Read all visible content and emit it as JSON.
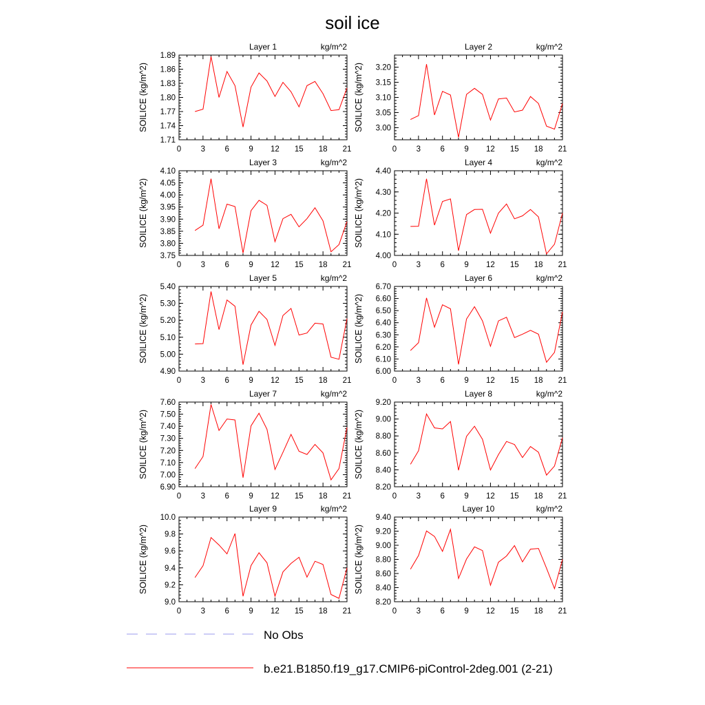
{
  "figure_title": "soil ice",
  "legend": [
    {
      "label": "No Obs",
      "color": "#9999ee",
      "dash": true
    },
    {
      "label": "b.e21.B1850.f19_g17.CMIP6-piControl-2deg.001 (2-21)",
      "color": "#ff0000",
      "dash": false
    }
  ],
  "chart_data": [
    {
      "type": "line",
      "title": "Layer 1",
      "units": "kg/m^2",
      "ylabel": "SOILICE  (kg/m^2)",
      "xlim": [
        0,
        21
      ],
      "ylim": [
        1.71,
        1.89
      ],
      "yticks": [
        "1.71",
        "1.74",
        "1.77",
        "1.80",
        "1.83",
        "1.86",
        "1.89"
      ],
      "x": [
        2,
        3,
        4,
        5,
        6,
        7,
        8,
        9,
        10,
        11,
        12,
        13,
        14,
        15,
        16,
        17,
        18,
        19,
        20,
        21
      ],
      "values": [
        1.77,
        1.775,
        1.887,
        1.8,
        1.855,
        1.825,
        1.737,
        1.822,
        1.852,
        1.835,
        1.802,
        1.832,
        1.812,
        1.78,
        1.825,
        1.834,
        1.808,
        1.772,
        1.774,
        1.82
      ]
    },
    {
      "type": "line",
      "title": "Layer 2",
      "units": "kg/m^2",
      "ylabel": "SOILICE  (kg/m^2)",
      "xlim": [
        0,
        21
      ],
      "ylim": [
        2.96,
        3.24
      ],
      "yticks": [
        "3.00",
        "3.05",
        "3.10",
        "3.15",
        "3.20"
      ],
      "x": [
        2,
        3,
        4,
        5,
        6,
        7,
        8,
        9,
        10,
        11,
        12,
        13,
        14,
        15,
        16,
        17,
        18,
        19,
        20,
        21
      ],
      "values": [
        3.027,
        3.04,
        3.21,
        3.042,
        3.12,
        3.108,
        2.968,
        3.11,
        3.13,
        3.11,
        3.025,
        3.095,
        3.098,
        3.052,
        3.058,
        3.103,
        3.08,
        3.005,
        2.995,
        3.08
      ]
    },
    {
      "type": "line",
      "title": "Layer 3",
      "units": "kg/m^2",
      "ylabel": "SOILICE  (kg/m^2)",
      "xlim": [
        0,
        21
      ],
      "ylim": [
        3.75,
        4.1
      ],
      "yticks": [
        "3.75",
        "3.80",
        "3.85",
        "3.90",
        "3.95",
        "4.00",
        "4.05",
        "4.10"
      ],
      "x": [
        2,
        3,
        4,
        5,
        6,
        7,
        8,
        9,
        10,
        11,
        12,
        13,
        14,
        15,
        16,
        17,
        18,
        19,
        20,
        21
      ],
      "values": [
        3.853,
        3.875,
        4.067,
        3.86,
        3.962,
        3.952,
        3.76,
        3.935,
        3.978,
        3.957,
        3.807,
        3.902,
        3.92,
        3.868,
        3.902,
        3.947,
        3.893,
        3.765,
        3.795,
        3.89
      ]
    },
    {
      "type": "line",
      "title": "Layer 4",
      "units": "kg/m^2",
      "ylabel": "SOILICE  (kg/m^2)",
      "xlim": [
        0,
        21
      ],
      "ylim": [
        4.0,
        4.4
      ],
      "yticks": [
        "4.00",
        "4.10",
        "4.20",
        "4.30",
        "4.40"
      ],
      "x": [
        2,
        3,
        4,
        5,
        6,
        7,
        8,
        9,
        10,
        11,
        12,
        13,
        14,
        15,
        16,
        17,
        18,
        19,
        20,
        21
      ],
      "values": [
        4.137,
        4.138,
        4.362,
        4.143,
        4.255,
        4.267,
        4.022,
        4.193,
        4.217,
        4.218,
        4.105,
        4.2,
        4.243,
        4.173,
        4.187,
        4.217,
        4.182,
        4.007,
        4.053,
        4.2
      ]
    },
    {
      "type": "line",
      "title": "Layer 5",
      "units": "kg/m^2",
      "ylabel": "SOILICE  (kg/m^2)",
      "xlim": [
        0,
        21
      ],
      "ylim": [
        4.9,
        5.4
      ],
      "yticks": [
        "4.90",
        "5.00",
        "5.10",
        "5.20",
        "5.30",
        "5.40"
      ],
      "x": [
        2,
        3,
        4,
        5,
        6,
        7,
        8,
        9,
        10,
        11,
        12,
        13,
        14,
        15,
        16,
        17,
        18,
        19,
        20,
        21
      ],
      "values": [
        5.06,
        5.062,
        5.37,
        5.145,
        5.32,
        5.283,
        4.938,
        5.172,
        5.253,
        5.205,
        5.052,
        5.228,
        5.27,
        5.113,
        5.125,
        5.183,
        5.178,
        4.982,
        4.97,
        5.21
      ]
    },
    {
      "type": "line",
      "title": "Layer 6",
      "units": "kg/m^2",
      "ylabel": "SOILICE  (kg/m^2)",
      "xlim": [
        0,
        21
      ],
      "ylim": [
        6.0,
        6.7
      ],
      "yticks": [
        "6.00",
        "6.10",
        "6.20",
        "6.30",
        "6.40",
        "6.50",
        "6.60",
        "6.70"
      ],
      "x": [
        2,
        3,
        4,
        5,
        6,
        7,
        8,
        9,
        10,
        11,
        12,
        13,
        14,
        15,
        16,
        17,
        18,
        19,
        20,
        21
      ],
      "values": [
        6.17,
        6.235,
        6.605,
        6.363,
        6.548,
        6.515,
        6.055,
        6.43,
        6.532,
        6.415,
        6.205,
        6.415,
        6.445,
        6.277,
        6.305,
        6.337,
        6.305,
        6.073,
        6.155,
        6.49
      ]
    },
    {
      "type": "line",
      "title": "Layer 7",
      "units": "kg/m^2",
      "ylabel": "SOILICE  (kg/m^2)",
      "xlim": [
        0,
        21
      ],
      "ylim": [
        6.9,
        7.6
      ],
      "yticks": [
        "6.90",
        "7.00",
        "7.10",
        "7.20",
        "7.30",
        "7.40",
        "7.50",
        "7.60"
      ],
      "x": [
        2,
        3,
        4,
        5,
        6,
        7,
        8,
        9,
        10,
        11,
        12,
        13,
        14,
        15,
        16,
        17,
        18,
        19,
        20,
        21
      ],
      "values": [
        7.05,
        7.15,
        7.58,
        7.365,
        7.46,
        7.452,
        6.975,
        7.403,
        7.508,
        7.375,
        7.043,
        7.185,
        7.333,
        7.193,
        7.167,
        7.25,
        7.18,
        6.957,
        7.05,
        7.39
      ]
    },
    {
      "type": "line",
      "title": "Layer 8",
      "units": "kg/m^2",
      "ylabel": "SOILICE  (kg/m^2)",
      "xlim": [
        0,
        21
      ],
      "ylim": [
        8.2,
        9.2
      ],
      "yticks": [
        "8.20",
        "8.40",
        "8.60",
        "8.80",
        "9.00",
        "9.20"
      ],
      "x": [
        2,
        3,
        4,
        5,
        6,
        7,
        8,
        9,
        10,
        11,
        12,
        13,
        14,
        15,
        16,
        17,
        18,
        19,
        20,
        21
      ],
      "values": [
        8.465,
        8.625,
        9.06,
        8.895,
        8.883,
        8.97,
        8.395,
        8.795,
        8.915,
        8.76,
        8.398,
        8.58,
        8.735,
        8.698,
        8.545,
        8.675,
        8.608,
        8.337,
        8.445,
        8.78
      ]
    },
    {
      "type": "line",
      "title": "Layer 9",
      "units": "kg/m^2",
      "ylabel": "SOILICE  (kg/m^2)",
      "xlim": [
        0,
        21
      ],
      "ylim": [
        9.0,
        10.0
      ],
      "yticks": [
        "9.0",
        "9.2",
        "9.4",
        "9.6",
        "9.8",
        "10.0"
      ],
      "x": [
        2,
        3,
        4,
        5,
        6,
        7,
        8,
        9,
        10,
        11,
        12,
        13,
        14,
        15,
        16,
        17,
        18,
        19,
        20,
        21
      ],
      "values": [
        9.285,
        9.425,
        9.758,
        9.67,
        9.565,
        9.805,
        9.065,
        9.427,
        9.578,
        9.46,
        9.065,
        9.352,
        9.452,
        9.525,
        9.29,
        9.478,
        9.44,
        9.085,
        9.04,
        9.4
      ]
    },
    {
      "type": "line",
      "title": "Layer 10",
      "units": "kg/m^2",
      "ylabel": "SOILICE  (kg/m^2)",
      "xlim": [
        0,
        21
      ],
      "ylim": [
        8.2,
        9.4
      ],
      "yticks": [
        "8.20",
        "8.40",
        "8.60",
        "8.80",
        "9.00",
        "9.20",
        "9.40"
      ],
      "x": [
        2,
        3,
        4,
        5,
        6,
        7,
        8,
        9,
        10,
        11,
        12,
        13,
        14,
        15,
        16,
        17,
        18,
        19,
        20,
        21
      ],
      "values": [
        8.66,
        8.855,
        9.203,
        9.125,
        8.913,
        9.225,
        8.53,
        8.805,
        8.978,
        8.925,
        8.433,
        8.76,
        8.848,
        8.995,
        8.765,
        8.945,
        8.955,
        8.675,
        8.385,
        8.8
      ]
    }
  ]
}
